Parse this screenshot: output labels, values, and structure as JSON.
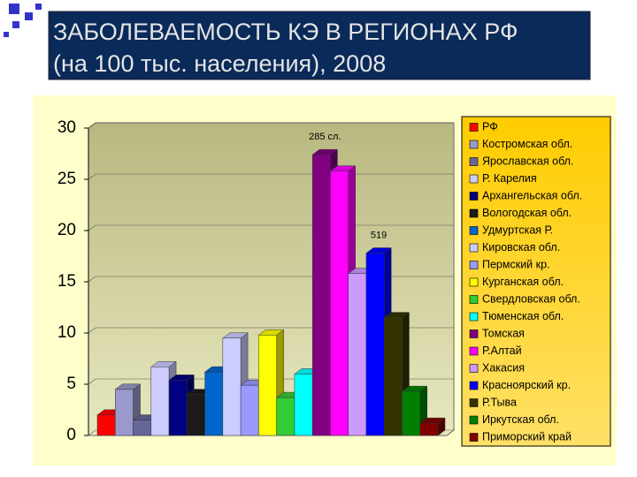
{
  "chart_data": {
    "type": "bar",
    "title": "ЗАБОЛЕВАЕМОСТЬ КЭ В РЕГИОНАХ РФ",
    "subtitle": "(на 100 тыс. населения), 2008",
    "categories": [
      "РФ",
      "Костромская обл.",
      "Ярославская обл.",
      "Р. Карелия",
      "Архангельская обл.",
      "Вологодская обл.",
      "Удмуртская Р.",
      "Кировская обл.",
      "Пермский кр.",
      "Курганская обл.",
      "Свердловская обл.",
      "Тюменская обл.",
      "Томская",
      "Р.Алтай",
      "Хакасия",
      "Красноярский кр.",
      "Р.Тыва",
      "Иркутская обл.",
      "Приморский край"
    ],
    "values": [
      2,
      4.5,
      1.5,
      6.7,
      5.4,
      4,
      6.2,
      9.5,
      4.9,
      9.8,
      3.7,
      6,
      27.4,
      25.8,
      15.8,
      17.8,
      11.5,
      4.3,
      1.2
    ],
    "colors": [
      "#ff0000",
      "#9999cc",
      "#666699",
      "#ccccff",
      "#000080",
      "#1a1a1a",
      "#0066cc",
      "#ccccff",
      "#9999ff",
      "#ffff00",
      "#33cc33",
      "#00ffff",
      "#800080",
      "#ff00ff",
      "#cc99ff",
      "#0000ff",
      "#333300",
      "#008000",
      "#800000"
    ],
    "annotations": [
      {
        "category": 12,
        "text": "285 сл."
      },
      {
        "category": 15,
        "text": "519"
      }
    ],
    "ylim": [
      0,
      30
    ],
    "yticks": [
      0,
      5,
      10,
      15,
      20,
      25,
      30
    ],
    "grid": true,
    "legend": "right"
  }
}
